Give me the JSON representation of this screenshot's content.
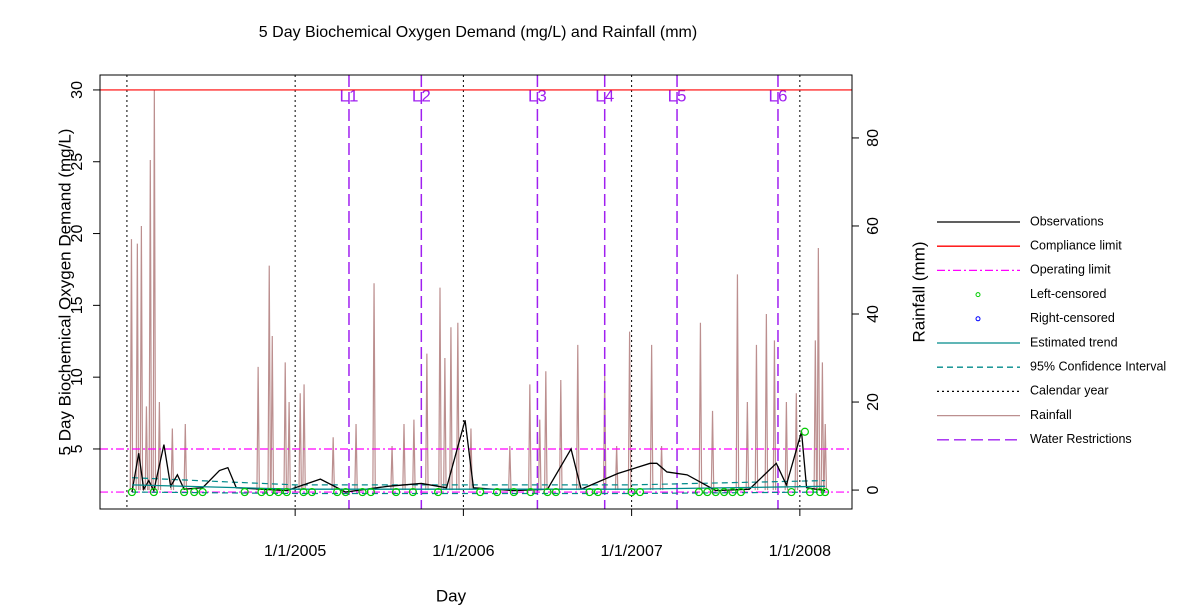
{
  "chart_data": {
    "type": "line",
    "title": "5 Day Biochemical Oxygen Demand (mg/L) and Rainfall (mm)",
    "xlabel": "Day",
    "ylabel": "5 Day Biochemical Oxygen Demand (mg/L)",
    "y2label": "Rainfall (mm)",
    "xlim": [
      2003.84,
      2008.31
    ],
    "ylim": [
      0.82,
      31.04
    ],
    "y2lim": [
      -4.3,
      94.3
    ],
    "xticks": [
      {
        "value": 2005,
        "label": "1/1/2005"
      },
      {
        "value": 2006,
        "label": "1/1/2006"
      },
      {
        "value": 2007,
        "label": "1/1/2007"
      },
      {
        "value": 2008,
        "label": "1/1/2008"
      }
    ],
    "yticks": [
      5,
      10,
      15,
      20,
      25,
      30
    ],
    "y2ticks": [
      0,
      20,
      40,
      60,
      80
    ],
    "series": [
      {
        "name": "Observations",
        "kind": "line",
        "color": "#000000",
        "linestyle": "solid",
        "x": [
          2004.03,
          2004.07,
          2004.1,
          2004.13,
          2004.16,
          2004.22,
          2004.26,
          2004.3,
          2004.34,
          2004.45,
          2004.55,
          2004.6,
          2004.65,
          2004.8,
          2004.95,
          2005.15,
          2005.3,
          2005.55,
          2005.75,
          2005.9,
          2006.01,
          2006.06,
          2006.3,
          2006.5,
          2006.64,
          2006.7,
          2006.92,
          2007.11,
          2007.15,
          2007.21,
          2007.33,
          2007.5,
          2007.7,
          2007.86,
          2007.92,
          2008.01,
          2008.04,
          2008.15
        ],
        "values": [
          2,
          4.7,
          2.2,
          2.8,
          2.1,
          5.3,
          2.4,
          3.2,
          2.2,
          2.3,
          3.5,
          3.7,
          2.3,
          2.2,
          2.1,
          2.9,
          2.0,
          2.4,
          2.6,
          2.3,
          7.0,
          2.3,
          2.1,
          2.2,
          5.0,
          2.2,
          3.3,
          4.0,
          4.0,
          3.4,
          3.2,
          2.1,
          2.2,
          4.0,
          2.5,
          6.2,
          2.3,
          2.1
        ]
      },
      {
        "name": "Compliance limit",
        "kind": "hline",
        "color": "#ff0000",
        "linestyle": "solid",
        "values": [
          30
        ]
      },
      {
        "name": "Operating limit",
        "kind": "hline",
        "color": "#ff00ff",
        "linestyle": "dashdot",
        "values": [
          5,
          2
        ]
      },
      {
        "name": "Left-censored",
        "kind": "points",
        "color": "#00cc00",
        "marker": "circle",
        "x": [
          2004.03,
          2004.16,
          2004.34,
          2004.4,
          2004.45,
          2004.7,
          2004.8,
          2004.85,
          2004.9,
          2004.95,
          2005.05,
          2005.1,
          2005.25,
          2005.3,
          2005.4,
          2005.45,
          2005.6,
          2005.7,
          2005.85,
          2006.1,
          2006.2,
          2006.3,
          2006.4,
          2006.5,
          2006.55,
          2006.75,
          2006.8,
          2007.0,
          2007.05,
          2007.4,
          2007.45,
          2007.5,
          2007.55,
          2007.6,
          2007.65,
          2007.95,
          2008.03,
          2008.06,
          2008.12,
          2008.15
        ],
        "values": [
          2,
          2,
          2,
          2,
          2,
          2,
          2,
          2,
          2,
          2,
          2,
          2,
          2,
          2,
          2,
          2,
          2,
          2,
          2,
          2,
          2,
          2,
          2,
          2,
          2,
          2,
          2,
          2,
          2,
          2,
          2,
          2,
          2,
          2,
          2,
          2,
          6.2,
          2,
          2,
          2
        ]
      },
      {
        "name": "Right-censored",
        "kind": "points",
        "color": "#0000ff",
        "marker": "circle",
        "x": [],
        "values": []
      },
      {
        "name": "Estimated trend",
        "kind": "line",
        "color": "#008b8b",
        "linestyle": "solid",
        "x": [
          2004.03,
          2005,
          2006,
          2007,
          2008.15
        ],
        "values": [
          2.5,
          2.2,
          2.2,
          2.2,
          2.4
        ]
      },
      {
        "name": "95% Confidence Interval",
        "kind": "band",
        "color": "#008b8b",
        "linestyle": "dashed",
        "x": [
          2004.03,
          2005,
          2006,
          2007,
          2008.15
        ],
        "upper": [
          3.0,
          2.5,
          2.5,
          2.5,
          2.8
        ],
        "lower": [
          2.0,
          1.9,
          1.9,
          1.9,
          2.0
        ]
      },
      {
        "name": "Calendar year",
        "kind": "vline",
        "color": "#000000",
        "linestyle": "dotted",
        "x": [
          2004,
          2005,
          2006,
          2007,
          2008
        ]
      },
      {
        "name": "Rainfall",
        "kind": "spike",
        "axis": "y2",
        "color": "#bc8f8f",
        "linestyle": "solid",
        "x": [
          2004.027,
          2004.062,
          2004.086,
          2004.116,
          2004.139,
          2004.163,
          2004.193,
          2004.27,
          2004.347,
          2004.78,
          2004.846,
          2004.864,
          2004.941,
          2004.964,
          2005.03,
          2005.053,
          2005.226,
          2005.362,
          2005.469,
          2005.576,
          2005.647,
          2005.706,
          2005.783,
          2005.861,
          2005.89,
          2005.926,
          2005.967,
          2006.045,
          2006.276,
          2006.395,
          2006.454,
          2006.49,
          2006.579,
          2006.68,
          2006.84,
          2006.911,
          2006.988,
          2007.119,
          2007.178,
          2007.409,
          2007.481,
          2007.629,
          2007.688,
          2007.742,
          2007.801,
          2007.849,
          2007.92,
          2007.979,
          2008.092,
          2008.11,
          2008.134,
          2008.151
        ],
        "values": [
          57,
          56,
          60,
          19,
          75,
          91,
          20,
          14,
          15,
          28,
          51,
          35,
          29,
          20,
          22,
          24,
          12,
          15,
          47,
          10,
          15,
          16,
          31,
          46,
          30,
          37,
          38,
          14,
          10,
          24,
          16,
          27,
          25,
          33,
          26,
          10,
          36,
          33,
          10,
          38,
          18,
          49,
          20,
          33,
          40,
          34,
          20,
          22,
          34,
          55,
          29,
          15
        ]
      },
      {
        "name": "Water Restrictions",
        "kind": "vline",
        "color": "#a020f0",
        "linestyle": "longdash",
        "x": [
          2005.32,
          2005.75,
          2006.44,
          2006.84,
          2007.27,
          2007.87
        ],
        "labels": [
          "L1",
          "L2",
          "L3",
          "L4",
          "L5",
          "L6"
        ]
      }
    ]
  }
}
